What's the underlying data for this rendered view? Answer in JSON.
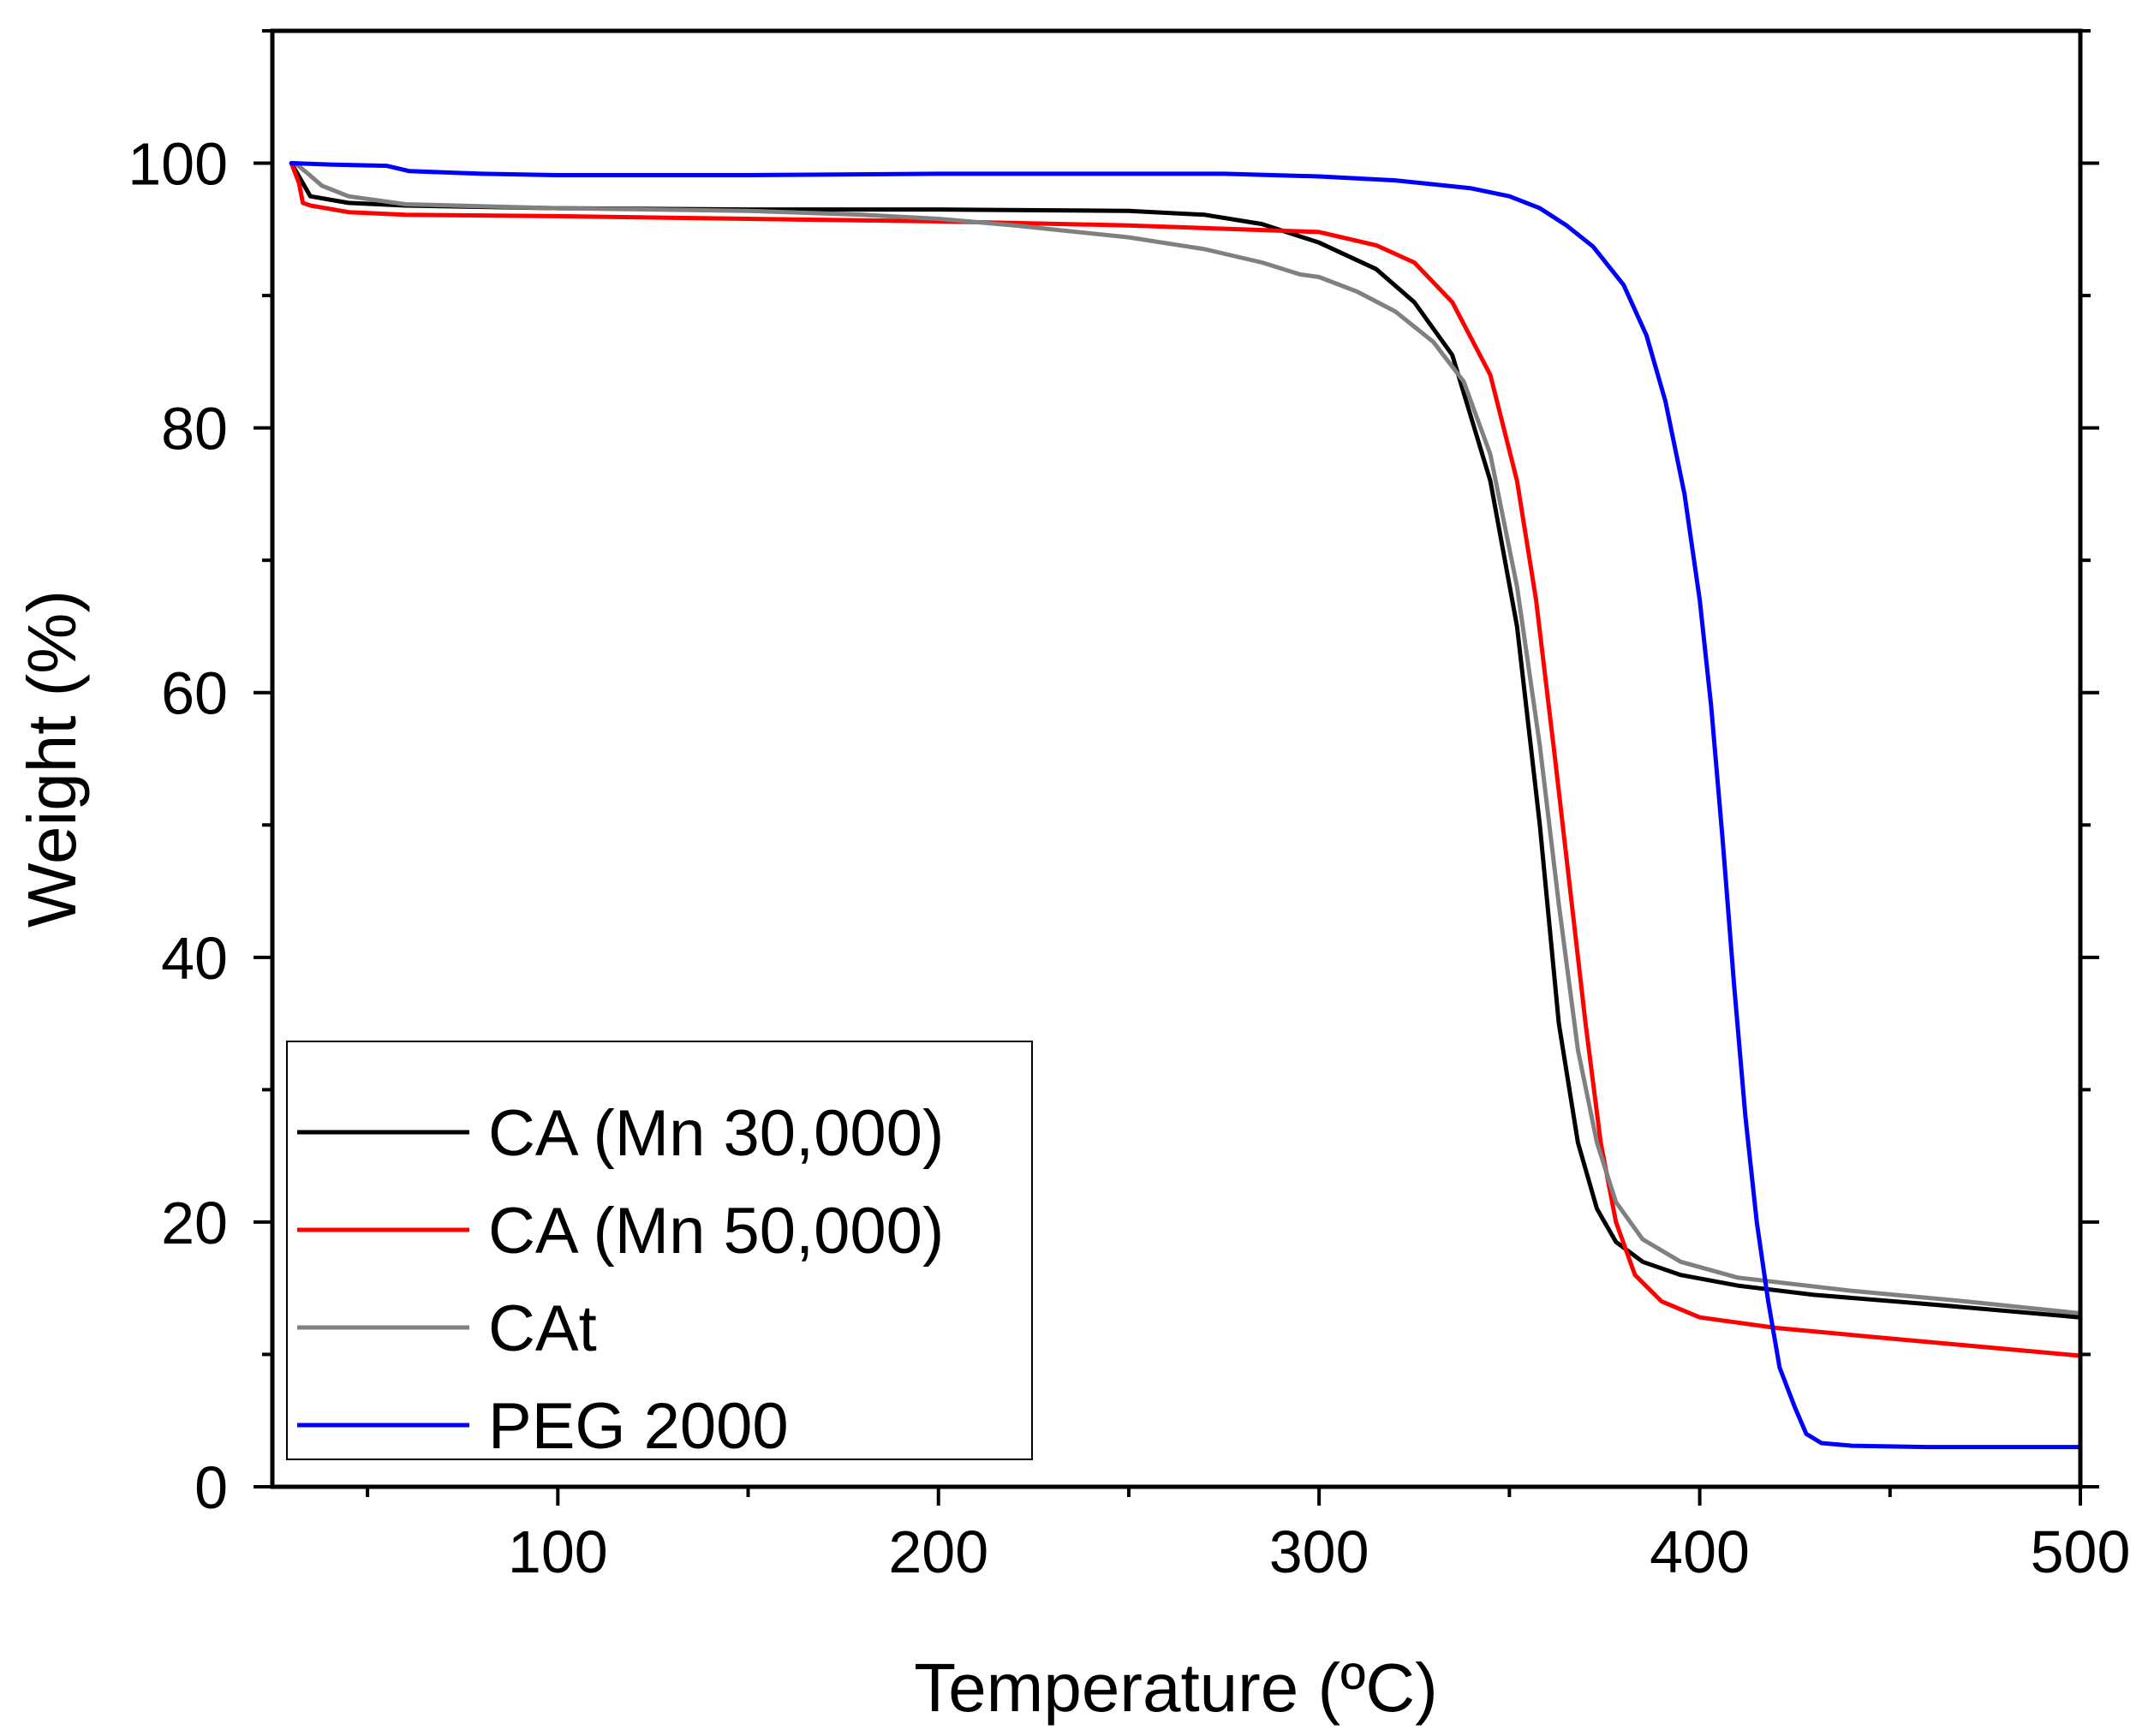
{
  "chart_data": {
    "type": "line",
    "title": "",
    "xlabel": "Temperature (ºC)",
    "ylabel": "Weight (%)",
    "xlim": [
      25,
      500
    ],
    "ylim": [
      0,
      110
    ],
    "x_ticks": [
      100,
      200,
      300,
      400,
      500
    ],
    "x_minor_ticks": [
      50,
      150,
      250,
      350,
      450
    ],
    "y_ticks": [
      0,
      20,
      40,
      60,
      80,
      100
    ],
    "y_minor_ticks": [
      10,
      30,
      50,
      70,
      90,
      110
    ],
    "grid": false,
    "legend_position": "bottom-left",
    "series": [
      {
        "name": "CA (Mn 30,000)",
        "color": "#000000",
        "points": [
          [
            30,
            100
          ],
          [
            32,
            99
          ],
          [
            35,
            97.5
          ],
          [
            45,
            97
          ],
          [
            60,
            96.8
          ],
          [
            100,
            96.6
          ],
          [
            150,
            96.5
          ],
          [
            200,
            96.5
          ],
          [
            250,
            96.4
          ],
          [
            270,
            96.1
          ],
          [
            285,
            95.4
          ],
          [
            300,
            94
          ],
          [
            315,
            92
          ],
          [
            325,
            89.5
          ],
          [
            335,
            85.5
          ],
          [
            345,
            76
          ],
          [
            352,
            65
          ],
          [
            358,
            50
          ],
          [
            363,
            35
          ],
          [
            368,
            26
          ],
          [
            373,
            21
          ],
          [
            378,
            18.5
          ],
          [
            385,
            17
          ],
          [
            395,
            16
          ],
          [
            410,
            15.2
          ],
          [
            430,
            14.5
          ],
          [
            460,
            13.8
          ],
          [
            500,
            12.8
          ]
        ]
      },
      {
        "name": "CA (Mn 50,000)",
        "color": "#ff0000",
        "points": [
          [
            30,
            100
          ],
          [
            32,
            98.5
          ],
          [
            33,
            97
          ],
          [
            35,
            96.8
          ],
          [
            45,
            96.3
          ],
          [
            60,
            96.1
          ],
          [
            100,
            96
          ],
          [
            150,
            95.8
          ],
          [
            200,
            95.6
          ],
          [
            250,
            95.3
          ],
          [
            300,
            94.8
          ],
          [
            315,
            93.8
          ],
          [
            325,
            92.5
          ],
          [
            335,
            89.5
          ],
          [
            345,
            84
          ],
          [
            352,
            76
          ],
          [
            357,
            67
          ],
          [
            362,
            55
          ],
          [
            366,
            45
          ],
          [
            370,
            35
          ],
          [
            374,
            26
          ],
          [
            378,
            20
          ],
          [
            383,
            16
          ],
          [
            390,
            14
          ],
          [
            400,
            12.8
          ],
          [
            420,
            12
          ],
          [
            450,
            11.2
          ],
          [
            500,
            9.9
          ]
        ]
      },
      {
        "name": "CAt",
        "color": "#808080",
        "points": [
          [
            31,
            100
          ],
          [
            34,
            99.3
          ],
          [
            38,
            98.3
          ],
          [
            45,
            97.5
          ],
          [
            60,
            96.9
          ],
          [
            100,
            96.6
          ],
          [
            150,
            96.4
          ],
          [
            180,
            96.1
          ],
          [
            200,
            95.8
          ],
          [
            220,
            95.3
          ],
          [
            250,
            94.4
          ],
          [
            270,
            93.5
          ],
          [
            285,
            92.5
          ],
          [
            295,
            91.6
          ],
          [
            300,
            91.4
          ],
          [
            310,
            90.3
          ],
          [
            320,
            88.8
          ],
          [
            330,
            86.5
          ],
          [
            338,
            83.5
          ],
          [
            345,
            78
          ],
          [
            352,
            68
          ],
          [
            358,
            56
          ],
          [
            363,
            44
          ],
          [
            368,
            33
          ],
          [
            373,
            26
          ],
          [
            378,
            21.5
          ],
          [
            385,
            18.7
          ],
          [
            395,
            17
          ],
          [
            410,
            15.8
          ],
          [
            440,
            14.8
          ],
          [
            470,
            14
          ],
          [
            500,
            13.1
          ]
        ]
      },
      {
        "name": "PEG 2000",
        "color": "#0000ff",
        "points": [
          [
            30,
            100
          ],
          [
            40,
            99.9
          ],
          [
            55,
            99.8
          ],
          [
            58,
            99.6
          ],
          [
            61,
            99.4
          ],
          [
            80,
            99.2
          ],
          [
            100,
            99.1
          ],
          [
            150,
            99.1
          ],
          [
            200,
            99.2
          ],
          [
            250,
            99.2
          ],
          [
            275,
            99.2
          ],
          [
            300,
            99
          ],
          [
            320,
            98.7
          ],
          [
            340,
            98.1
          ],
          [
            350,
            97.5
          ],
          [
            358,
            96.6
          ],
          [
            365,
            95.3
          ],
          [
            372,
            93.7
          ],
          [
            380,
            90.8
          ],
          [
            386,
            87
          ],
          [
            391,
            82
          ],
          [
            396,
            75
          ],
          [
            400,
            67
          ],
          [
            403,
            59
          ],
          [
            406,
            49
          ],
          [
            409,
            38
          ],
          [
            412,
            28
          ],
          [
            415,
            20
          ],
          [
            418,
            14
          ],
          [
            421,
            9
          ],
          [
            425,
            6
          ],
          [
            428,
            4
          ],
          [
            432,
            3.3
          ],
          [
            440,
            3.1
          ],
          [
            460,
            3
          ],
          [
            500,
            3
          ]
        ]
      }
    ]
  }
}
